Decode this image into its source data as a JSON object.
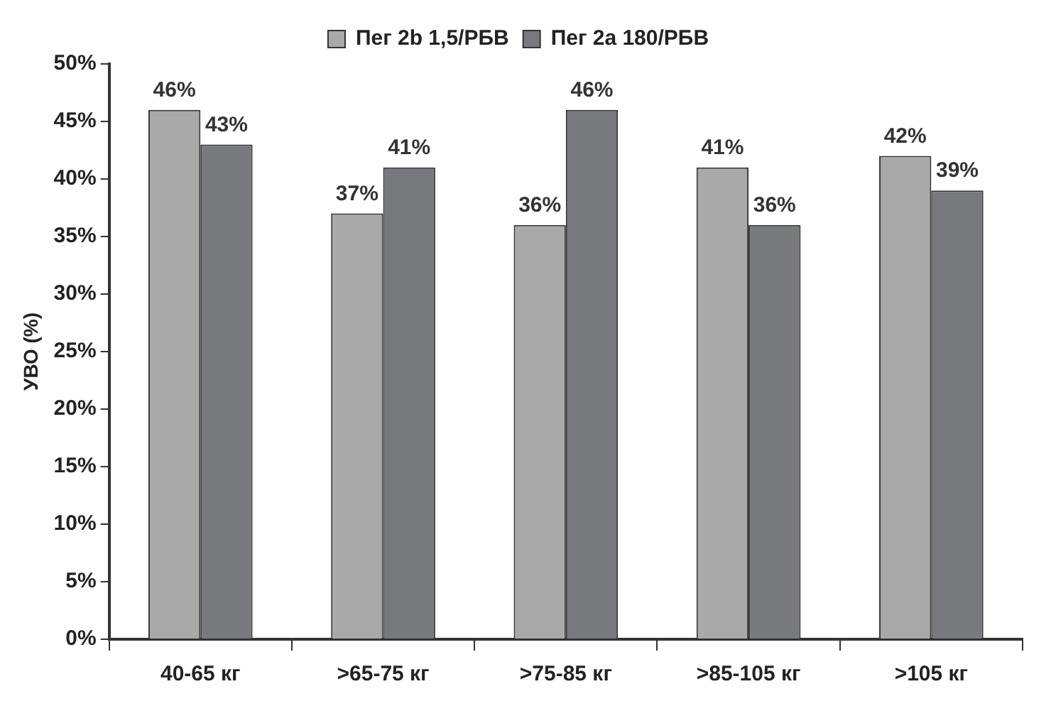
{
  "chart_data": {
    "type": "bar",
    "ylabel": "УВО (%)",
    "categories": [
      "40-65 кг",
      ">65-75 кг",
      ">75-85 кг",
      ">85-105 кг",
      ">105 кг"
    ],
    "series": [
      {
        "name": "Пег 2b 1,5/РБВ",
        "color": "#a9a9aa",
        "values": [
          46,
          37,
          36,
          41,
          42
        ],
        "value_labels": [
          "46%",
          "37%",
          "36%",
          "41%",
          "42%"
        ]
      },
      {
        "name": "Пег 2a 180/РБВ",
        "color": "#78797c",
        "values": [
          43,
          41,
          46,
          36,
          39
        ],
        "value_labels": [
          "43%",
          "41%",
          "46%",
          "36%",
          "39%"
        ]
      }
    ],
    "ylim": [
      0,
      50
    ],
    "yticks": [
      {
        "value": 0,
        "label": "0%"
      },
      {
        "value": 5,
        "label": "5%"
      },
      {
        "value": 10,
        "label": "10%"
      },
      {
        "value": 15,
        "label": "15%"
      },
      {
        "value": 20,
        "label": "20%"
      },
      {
        "value": 25,
        "label": "25%"
      },
      {
        "value": 30,
        "label": "30%"
      },
      {
        "value": 35,
        "label": "35%"
      },
      {
        "value": 40,
        "label": "40%"
      },
      {
        "value": 45,
        "label": "45%"
      },
      {
        "value": 50,
        "label": "50%"
      }
    ],
    "grid": false,
    "legend": "top"
  }
}
